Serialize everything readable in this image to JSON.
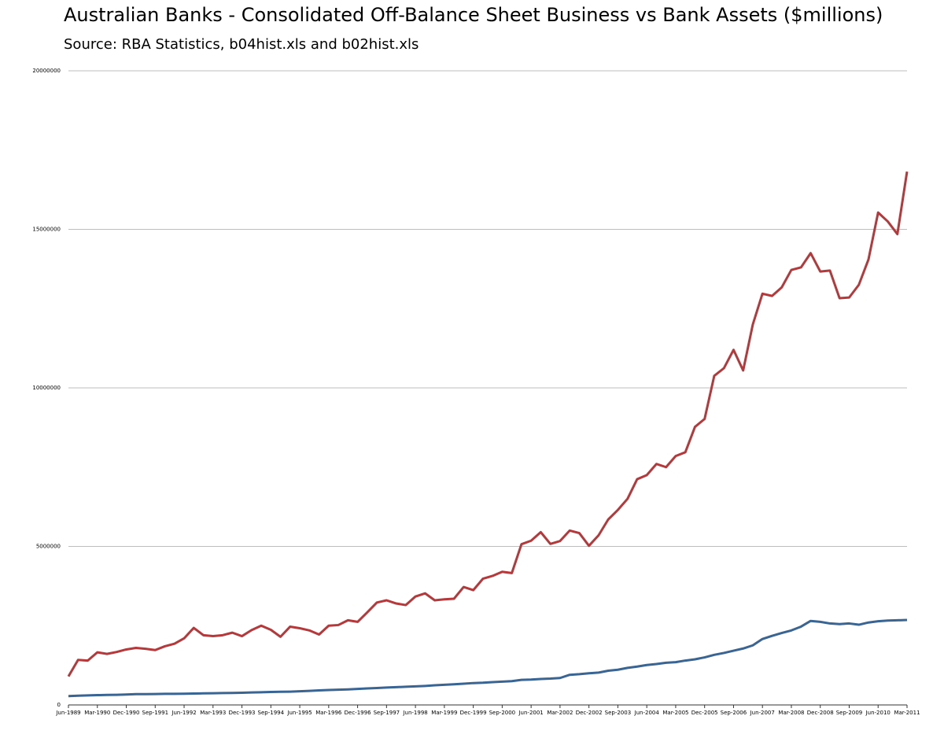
{
  "chart_data": {
    "type": "line",
    "title": "Australian Banks - Consolidated Off-Balance Sheet Business vs Bank Assets ($millions)",
    "subtitle": "Source: RBA Statistics, b04hist.xls and b02hist.xls",
    "categories": [
      "Jun-1989",
      null,
      null,
      "Mar-1990",
      null,
      null,
      "Dec-1990",
      null,
      null,
      "Sep-1991",
      null,
      null,
      "Jun-1992",
      null,
      null,
      "Mar-1993",
      null,
      null,
      "Dec-1993",
      null,
      null,
      "Sep-1994",
      null,
      null,
      "Jun-1995",
      null,
      null,
      "Mar-1996",
      null,
      null,
      "Dec-1996",
      null,
      null,
      "Sep-1997",
      null,
      null,
      "Jun-1998",
      null,
      null,
      "Mar-1999",
      null,
      null,
      "Dec-1999",
      null,
      null,
      "Sep-2000",
      null,
      null,
      "Jun-2001",
      null,
      null,
      "Mar-2002",
      null,
      null,
      "Dec-2002",
      null,
      null,
      "Sep-2003",
      null,
      null,
      "Jun-2004",
      null,
      null,
      "Mar-2005",
      null,
      null,
      "Dec-2005",
      null,
      null,
      "Sep-2006",
      null,
      null,
      "Jun-2007",
      null,
      null,
      "Mar-2008",
      null,
      null,
      "Dec-2008",
      null,
      null,
      "Sep-2009",
      null,
      null,
      "Jun-2010",
      null,
      null,
      "Mar-2011"
    ],
    "series": [
      {
        "color": "#b5393b",
        "values": [
          900000,
          1420000,
          1400000,
          1660000,
          1610000,
          1670000,
          1750000,
          1800000,
          1770000,
          1730000,
          1850000,
          1930000,
          2100000,
          2430000,
          2200000,
          2170000,
          2200000,
          2280000,
          2170000,
          2360000,
          2500000,
          2370000,
          2150000,
          2470000,
          2420000,
          2350000,
          2220000,
          2500000,
          2520000,
          2670000,
          2620000,
          2920000,
          3230000,
          3300000,
          3200000,
          3150000,
          3420000,
          3520000,
          3300000,
          3330000,
          3350000,
          3720000,
          3620000,
          3980000,
          4070000,
          4200000,
          4160000,
          5070000,
          5180000,
          5450000,
          5080000,
          5170000,
          5500000,
          5420000,
          5020000,
          5350000,
          5850000,
          6150000,
          6500000,
          7120000,
          7250000,
          7600000,
          7500000,
          7850000,
          7970000,
          8770000,
          9020000,
          10380000,
          10620000,
          11200000,
          10550000,
          12000000,
          12970000,
          12900000,
          13170000,
          13720000,
          13800000,
          14250000,
          13670000,
          13700000,
          12830000,
          12850000,
          13250000,
          14050000,
          15530000,
          15250000,
          14850000,
          16820000
        ]
      },
      {
        "color": "#3a6491",
        "values": [
          280000,
          290000,
          300000,
          310000,
          315000,
          320000,
          330000,
          340000,
          340000,
          345000,
          350000,
          350000,
          355000,
          360000,
          365000,
          370000,
          375000,
          380000,
          385000,
          395000,
          400000,
          410000,
          415000,
          420000,
          430000,
          445000,
          460000,
          470000,
          480000,
          490000,
          505000,
          520000,
          535000,
          550000,
          560000,
          575000,
          585000,
          600000,
          620000,
          635000,
          650000,
          670000,
          690000,
          700000,
          720000,
          735000,
          750000,
          790000,
          800000,
          820000,
          830000,
          850000,
          950000,
          970000,
          1000000,
          1020000,
          1080000,
          1110000,
          1170000,
          1210000,
          1260000,
          1290000,
          1330000,
          1350000,
          1400000,
          1440000,
          1500000,
          1580000,
          1640000,
          1710000,
          1780000,
          1880000,
          2080000,
          2180000,
          2270000,
          2350000,
          2470000,
          2650000,
          2620000,
          2570000,
          2550000,
          2570000,
          2530000,
          2600000,
          2640000,
          2660000,
          2670000,
          2680000
        ]
      }
    ],
    "ylim": [
      0,
      20000000
    ],
    "yticks": [
      0,
      5000000,
      10000000,
      15000000,
      20000000
    ],
    "grid": true
  }
}
